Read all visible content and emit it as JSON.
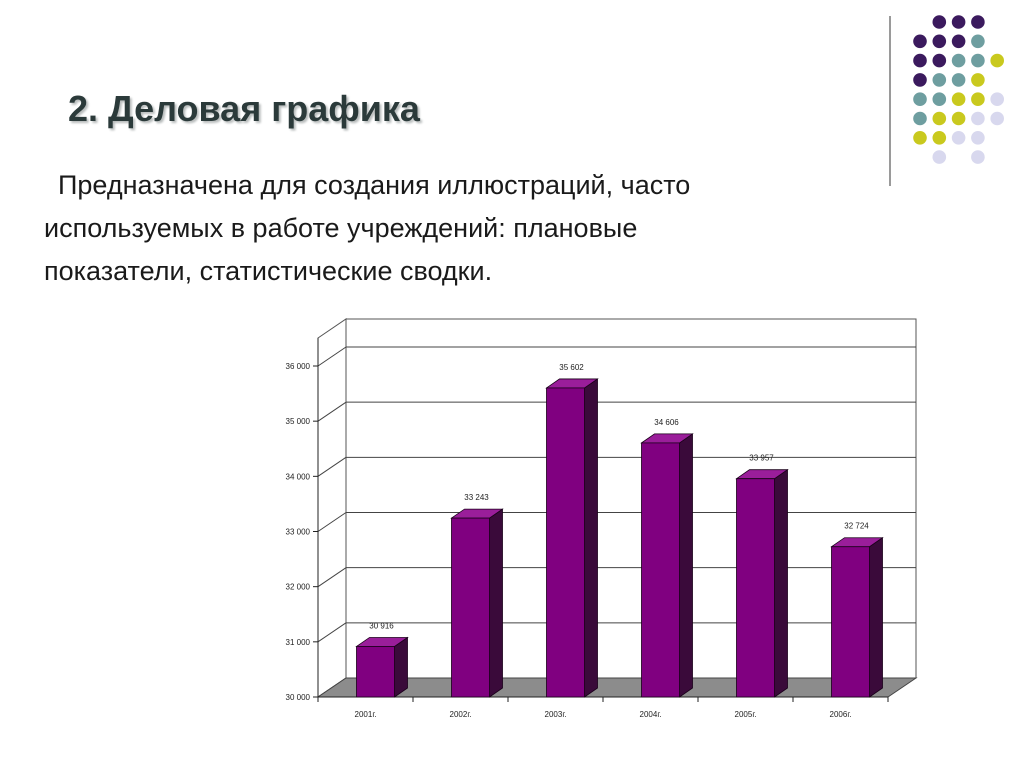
{
  "slide": {
    "title": "2. Деловая графика",
    "body_line1": "Предназначена для создания иллюстраций, часто",
    "body_line2": "используемых в работе учреждений: плановые",
    "body_line3": "показатели, статистические сводки."
  },
  "colors": {
    "bar_front": "#800080",
    "bar_top": "#9a1e9a",
    "bar_side": "#3a0a3a",
    "floor": "#8c8c8c",
    "title": "#2b3a3a",
    "dot_purple": "#3b1a5e",
    "dot_teal": "#6e9ea0",
    "dot_olive": "#c9c91e",
    "dot_lavender": "#d8d8ee"
  },
  "chart_data": {
    "type": "bar",
    "categories": [
      "2001г.",
      "2002г.",
      "2003г.",
      "2004г.",
      "2005г.",
      "2006г."
    ],
    "values": [
      30916,
      33243,
      35602,
      34606,
      33957,
      32724
    ],
    "data_labels": [
      "30 916",
      "33 243",
      "35 602",
      "34 606",
      "33 957",
      "32 724"
    ],
    "ylim": [
      30000,
      36000
    ],
    "yticks": [
      30000,
      31000,
      32000,
      33000,
      34000,
      35000,
      36000
    ],
    "ytick_labels": [
      "30 000",
      "31 000",
      "32 000",
      "33 000",
      "34 000",
      "35 000",
      "36 000"
    ],
    "title": "",
    "xlabel": "",
    "ylabel": "",
    "grid": true,
    "three_d": true
  }
}
